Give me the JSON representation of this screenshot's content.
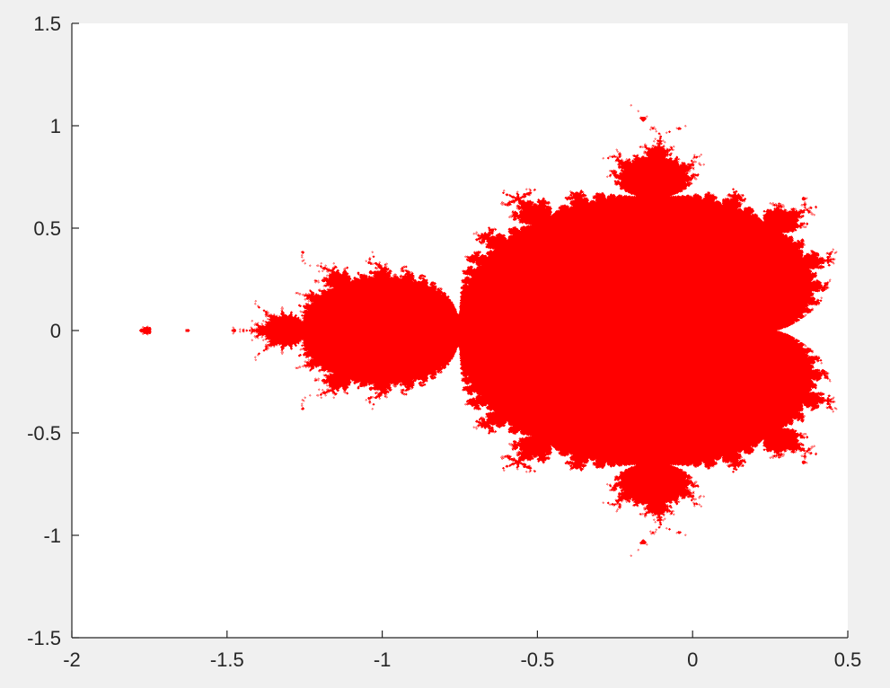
{
  "chart_data": {
    "type": "scatter",
    "title": "",
    "xlabel": "",
    "ylabel": "",
    "xlim": [
      -2,
      0.5
    ],
    "ylim": [
      -1.5,
      1.5
    ],
    "x_ticks": [
      -2,
      -1.5,
      -1,
      -0.5,
      0,
      0.5
    ],
    "x_tick_labels": [
      "-2",
      "-1.5",
      "-1",
      "-0.5",
      "0",
      "0.5"
    ],
    "y_ticks": [
      -1.5,
      -1,
      -0.5,
      0,
      0.5,
      1,
      1.5
    ],
    "y_tick_labels": [
      "-1.5",
      "-1",
      "-0.5",
      "0",
      "0.5",
      "1",
      "1.5"
    ],
    "grid": false,
    "legend": "none",
    "series": [
      {
        "marker_color": "#ff0000",
        "description_of_points": "points c in the complex plane whose iteration z -> z^2 + c stays bounded (filled set)",
        "bounded_region": {
          "x_range": [
            -1.94,
            0.47
          ],
          "y_range": [
            -1.12,
            1.12
          ]
        }
      }
    ]
  },
  "colors": {
    "figure_background": "#f0f0f0",
    "axes_background": "#ffffff",
    "axis_line": "#262626",
    "marker": "#ff0000"
  }
}
